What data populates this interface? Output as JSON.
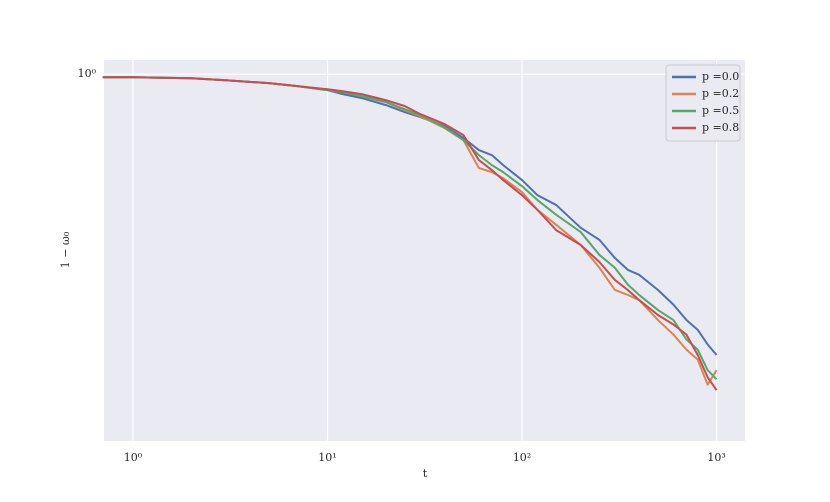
{
  "chart_data": {
    "type": "line",
    "x_label": "t",
    "y_label": "1 − ω₀",
    "log_x": true,
    "log_y": true,
    "grid": true,
    "legend": "upper right",
    "xlim": [
      0.71,
      1400
    ],
    "ylim": [
      0.108,
      1.09
    ],
    "xticks": [
      {
        "value": 1,
        "label": "10⁰"
      },
      {
        "value": 10,
        "label": "10¹"
      },
      {
        "value": 100,
        "label": "10²"
      },
      {
        "value": 1000,
        "label": "10³"
      }
    ],
    "yticks": [
      {
        "value": 1,
        "label": "10⁰"
      }
    ],
    "x": [
      0.7,
      1,
      2,
      3,
      5,
      7,
      10,
      12,
      15,
      20,
      25,
      30,
      40,
      50,
      60,
      70,
      80,
      100,
      120,
      150,
      200,
      250,
      300,
      350,
      400,
      500,
      600,
      700,
      800,
      900,
      1000
    ],
    "series": [
      {
        "name": "p =0.0",
        "color": "#4c72b0",
        "values": [
          0.982,
          0.982,
          0.976,
          0.964,
          0.947,
          0.93,
          0.908,
          0.886,
          0.865,
          0.829,
          0.794,
          0.771,
          0.73,
          0.679,
          0.631,
          0.612,
          0.576,
          0.526,
          0.48,
          0.452,
          0.394,
          0.366,
          0.328,
          0.305,
          0.296,
          0.27,
          0.247,
          0.225,
          0.212,
          0.194,
          0.182
        ]
      },
      {
        "name": "p =0.2",
        "color": "#dd8452",
        "values": [
          0.982,
          0.982,
          0.976,
          0.964,
          0.947,
          0.93,
          0.908,
          0.897,
          0.875,
          0.844,
          0.804,
          0.775,
          0.721,
          0.67,
          0.566,
          0.552,
          0.532,
          0.489,
          0.439,
          0.401,
          0.355,
          0.309,
          0.27,
          0.262,
          0.254,
          0.225,
          0.206,
          0.188,
          0.177,
          0.152,
          0.166
        ]
      },
      {
        "name": "p =0.5",
        "color": "#55a868",
        "values": [
          0.982,
          0.982,
          0.976,
          0.964,
          0.947,
          0.93,
          0.908,
          0.897,
          0.875,
          0.844,
          0.809,
          0.78,
          0.725,
          0.67,
          0.612,
          0.576,
          0.552,
          0.507,
          0.466,
          0.426,
          0.384,
          0.334,
          0.309,
          0.279,
          0.262,
          0.239,
          0.225,
          0.2,
          0.188,
          0.166,
          0.157
        ]
      },
      {
        "name": "p =0.8",
        "color": "#c44e52",
        "values": [
          0.982,
          0.982,
          0.976,
          0.964,
          0.947,
          0.93,
          0.913,
          0.902,
          0.886,
          0.854,
          0.824,
          0.785,
          0.739,
          0.691,
          0.594,
          0.559,
          0.526,
          0.48,
          0.439,
          0.388,
          0.355,
          0.32,
          0.287,
          0.27,
          0.254,
          0.232,
          0.219,
          0.206,
          0.182,
          0.159,
          0.147
        ]
      }
    ]
  }
}
